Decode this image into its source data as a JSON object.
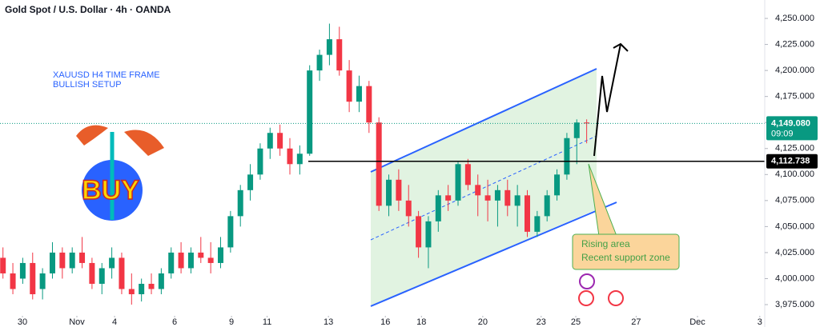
{
  "chart_data": {
    "type": "candlestick",
    "title": "Gold Spot / U.S. Dollar · 4h · OANDA",
    "up_color": "#089981",
    "down_color": "#f23645",
    "x": [
      0,
      1,
      2,
      3,
      4,
      5,
      6,
      7,
      8,
      9,
      10,
      11,
      12,
      13,
      14,
      15,
      16,
      17,
      18,
      19,
      20,
      21,
      22,
      23,
      24,
      25,
      26,
      27,
      28,
      29,
      30,
      31,
      32,
      33,
      34,
      35,
      36,
      37,
      38,
      39,
      40,
      41,
      42,
      43,
      44,
      45,
      46,
      47,
      48,
      49,
      50,
      51,
      52,
      53,
      54,
      55,
      56,
      57,
      58,
      59
    ],
    "open": [
      4020,
      4005,
      4000,
      4015,
      3990,
      4005,
      4025,
      4010,
      4025,
      4015,
      3995,
      4010,
      4020,
      3990,
      3985,
      3995,
      3990,
      4005,
      4025,
      4010,
      4025,
      4020,
      4015,
      4030,
      4060,
      4085,
      4100,
      4125,
      4140,
      4125,
      4110,
      4120,
      4200,
      4215,
      4230,
      4200,
      4170,
      4185,
      4150,
      4070,
      4095,
      4075,
      4060,
      4030,
      4055,
      4080,
      4075,
      4110,
      4090,
      4080,
      4075,
      4085,
      4070,
      4080,
      4045,
      4060,
      4080,
      4100,
      4135,
      4150
    ],
    "high": [
      4030,
      4015,
      4020,
      4025,
      4010,
      4035,
      4030,
      4030,
      4040,
      4020,
      4015,
      4030,
      4025,
      4005,
      4000,
      4005,
      4010,
      4030,
      4035,
      4030,
      4040,
      4035,
      4040,
      4065,
      4090,
      4110,
      4130,
      4145,
      4148,
      4135,
      4128,
      4205,
      4220,
      4245,
      4242,
      4210,
      4195,
      4190,
      4155,
      4100,
      4105,
      4090,
      4065,
      4060,
      4085,
      4090,
      4112,
      4115,
      4100,
      4095,
      4090,
      4095,
      4090,
      4085,
      4065,
      4085,
      4105,
      4140,
      4153,
      4153
    ],
    "low": [
      4000,
      3985,
      3995,
      3980,
      3980,
      4000,
      4000,
      4005,
      4010,
      3990,
      3985,
      4000,
      3985,
      3975,
      3978,
      3985,
      3985,
      4000,
      4005,
      4005,
      4015,
      4005,
      4010,
      4025,
      4050,
      4075,
      4095,
      4115,
      4118,
      4100,
      4100,
      4118,
      4190,
      4205,
      4195,
      4160,
      4160,
      4140,
      4065,
      4060,
      4065,
      4050,
      4020,
      4010,
      4045,
      4065,
      4070,
      4085,
      4060,
      4055,
      4050,
      4060,
      4050,
      4040,
      4040,
      4055,
      4075,
      4095,
      4110,
      4130
    ],
    "close": [
      4005,
      3990,
      4015,
      3985,
      4005,
      4025,
      4010,
      4025,
      4015,
      3995,
      4010,
      4020,
      3990,
      3985,
      3995,
      3990,
      4005,
      4025,
      4010,
      4025,
      4020,
      4015,
      4030,
      4060,
      4085,
      4100,
      4125,
      4140,
      4125,
      4110,
      4120,
      4200,
      4215,
      4230,
      4200,
      4170,
      4185,
      4150,
      4070,
      4095,
      4075,
      4060,
      4030,
      4055,
      4080,
      4075,
      4110,
      4090,
      4080,
      4075,
      4085,
      4070,
      4080,
      4045,
      4060,
      4080,
      4100,
      4135,
      4150,
      4149.08
    ],
    "xlim": [
      -0.3,
      77
    ],
    "xticks": [
      {
        "value": 1.97,
        "label": "30"
      },
      {
        "value": 7.47,
        "label": "Nov"
      },
      {
        "value": 11.28,
        "label": "4"
      },
      {
        "value": 17.35,
        "label": "6"
      },
      {
        "value": 23.1,
        "label": "9"
      },
      {
        "value": 26.7,
        "label": "11"
      },
      {
        "value": 32.9,
        "label": "13"
      },
      {
        "value": 38.65,
        "label": "16"
      },
      {
        "value": 42.3,
        "label": "18"
      },
      {
        "value": 48.5,
        "label": "20"
      },
      {
        "value": 54.4,
        "label": "23"
      },
      {
        "value": 57.9,
        "label": "25"
      },
      {
        "value": 64,
        "label": "27"
      },
      {
        "value": 70.2,
        "label": "Dec"
      },
      {
        "value": 76.5,
        "label": "3"
      }
    ],
    "ylim": [
      3953.5,
      4267.7
    ],
    "yticks": [
      {
        "value": 3975,
        "label": "3,975.000"
      },
      {
        "value": 4000,
        "label": "4,000.000"
      },
      {
        "value": 4025,
        "label": "4,025.000"
      },
      {
        "value": 4050,
        "label": "4,050.000"
      },
      {
        "value": 4075,
        "label": "4,075.000"
      },
      {
        "value": 4100,
        "label": "4,100.000"
      },
      {
        "value": 4125,
        "label": "4,125.000"
      },
      {
        "value": 4150,
        "label": "4,150.000"
      },
      {
        "value": 4175,
        "label": "4,175.000"
      },
      {
        "value": 4200,
        "label": "4,200.000"
      },
      {
        "value": 4225,
        "label": "4,225.000"
      },
      {
        "value": 4250,
        "label": "4,250.000"
      }
    ],
    "last_price": {
      "value": 4149.08,
      "label": "4,149.080",
      "countdown": "09:09",
      "color": "#089981"
    },
    "support_line": {
      "value": 4112.738,
      "label": "4,112.738",
      "color": "#000000"
    },
    "annotations": {
      "setup": [
        "XAUUSD H4 TIME FRAME",
        "BULLISH SETUP"
      ],
      "logo": "BUY",
      "callout": [
        "Rising area",
        "Recent support zone"
      ]
    }
  }
}
